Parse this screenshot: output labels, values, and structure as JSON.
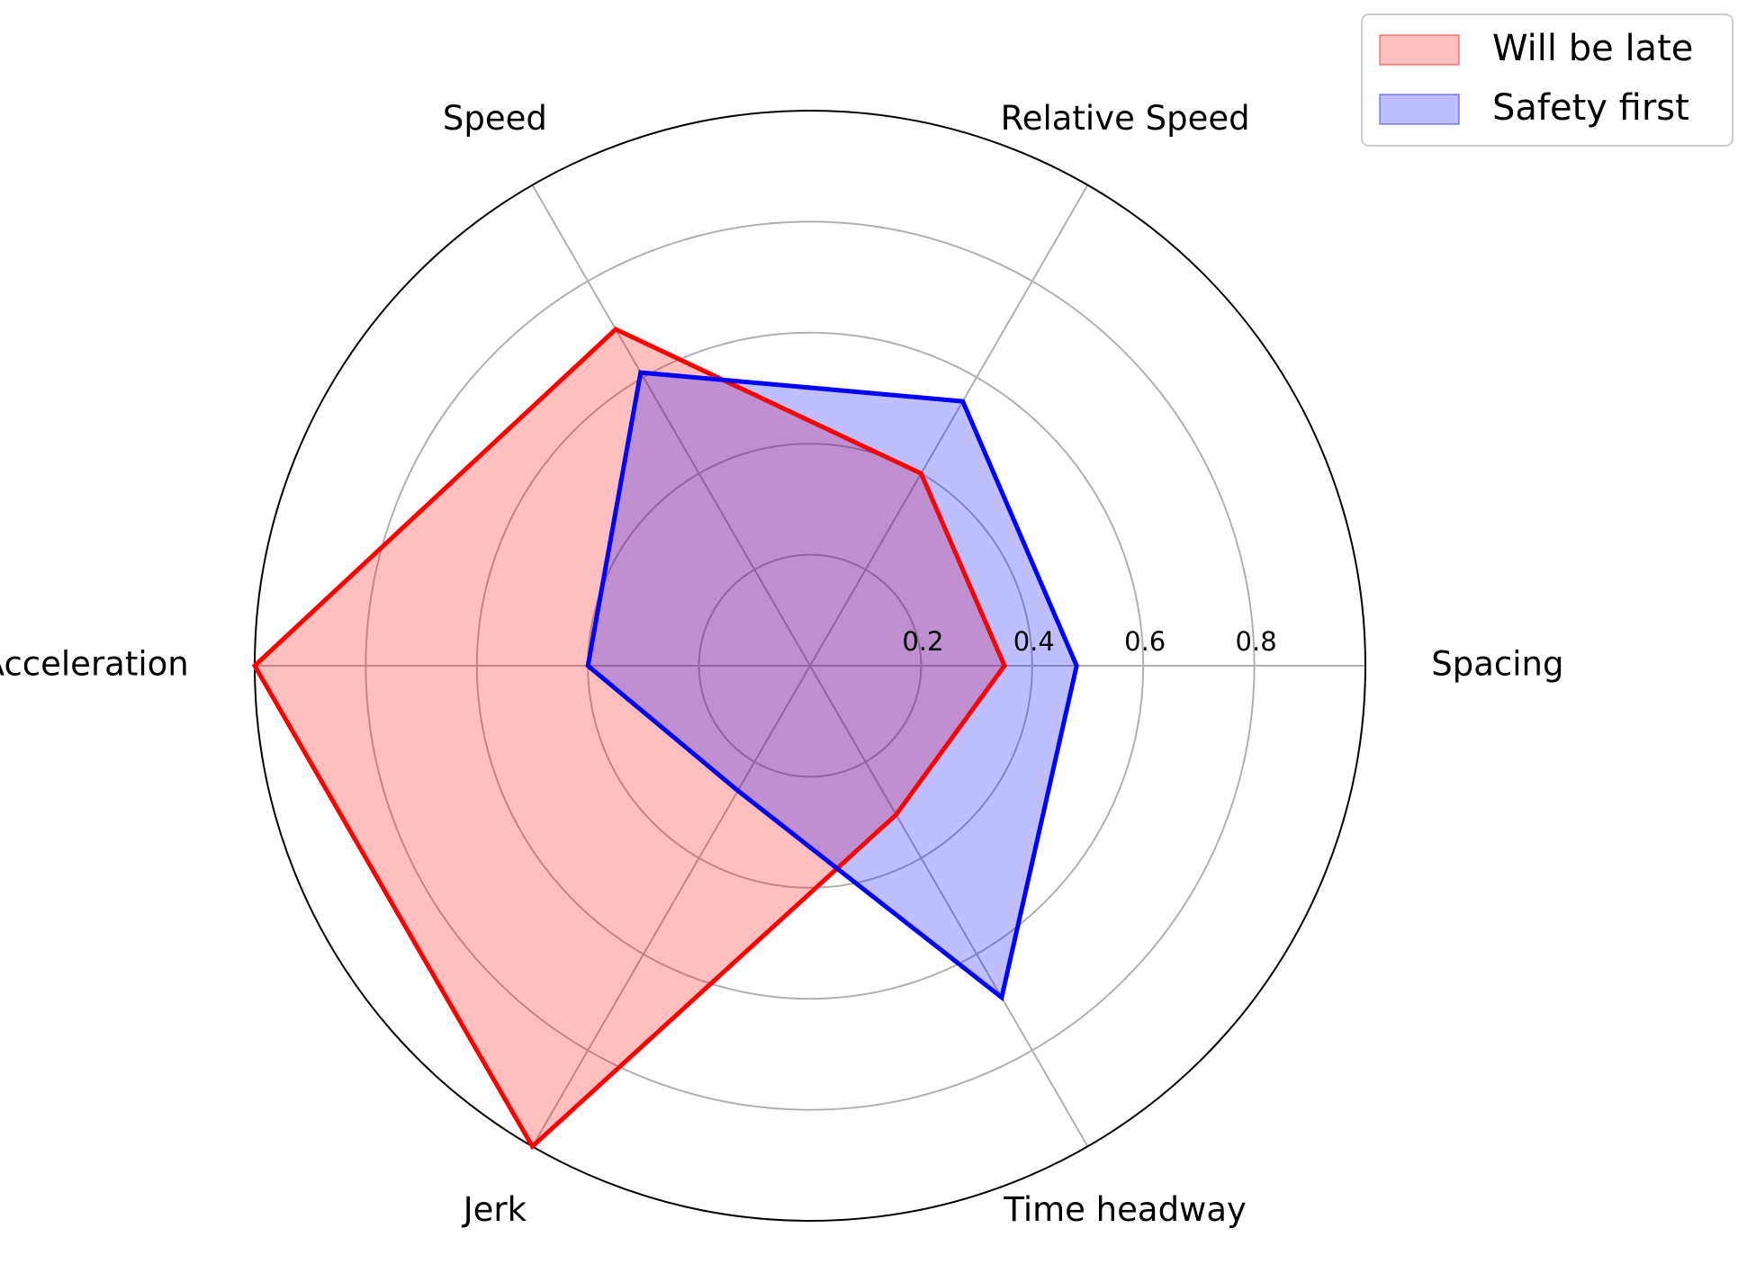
{
  "chart_data": {
    "type": "radar",
    "axes": [
      "Spacing",
      "Relative Speed",
      "Speed",
      "Acceleration",
      "Jerk",
      "Time headway"
    ],
    "rlim": [
      0,
      1.0
    ],
    "r_ticks": [
      "0.2",
      "0.4",
      "0.6",
      "0.8"
    ],
    "r_tick_values": [
      0.2,
      0.4,
      0.6,
      0.8
    ],
    "grid": true,
    "legend_position": "top-right",
    "series": [
      {
        "name": "Will be late",
        "values": [
          0.35,
          0.4,
          0.7,
          1.0,
          1.0,
          0.31
        ],
        "color": "#ff0000",
        "fill": "#ff0000",
        "fill_opacity": 0.25
      },
      {
        "name": "Safety first",
        "values": [
          0.48,
          0.55,
          0.61,
          0.4,
          0.26,
          0.69
        ],
        "color": "#0000ff",
        "fill": "#0000ff",
        "fill_opacity": 0.25
      }
    ]
  }
}
